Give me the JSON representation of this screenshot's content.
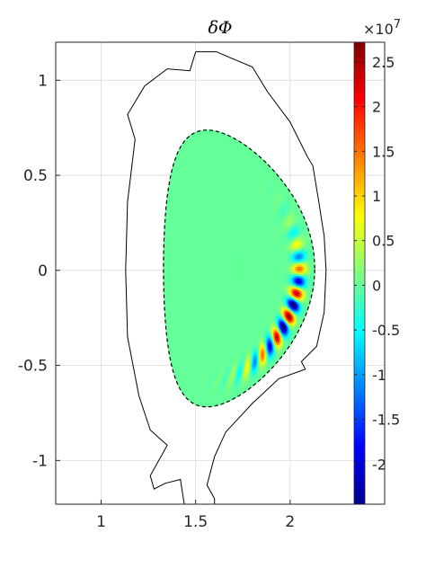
{
  "chart_data": {
    "type": "heatmap",
    "title": "δΦ",
    "xlabel": "",
    "ylabel": "",
    "xlim": [
      0.76,
      2.5
    ],
    "ylim": [
      -1.23,
      1.2
    ],
    "x_ticks": [
      1,
      1.5,
      2
    ],
    "x_tick_labels": [
      "1",
      "1.5",
      "2"
    ],
    "y_ticks": [
      1,
      0.5,
      0,
      -0.5,
      -1
    ],
    "y_tick_labels": [
      "1",
      "0.5",
      "0",
      "-0.5",
      "-1"
    ],
    "grid": true,
    "colormap": "jet",
    "colorbar": {
      "location": "right",
      "exponent_label": "×10",
      "exponent_power": "7",
      "range": [
        -2.45,
        2.72
      ],
      "ticks": [
        2.5,
        2,
        1.5,
        1,
        0.5,
        0,
        -0.5,
        -1,
        -1.5,
        -2
      ],
      "tick_labels": [
        "2.5",
        "2",
        "1.5",
        "1",
        "0.5",
        "0",
        "-0.5",
        "-1",
        "-1.5",
        "-2"
      ]
    },
    "wall_outline": [
      [
        1.5,
        1.15
      ],
      [
        1.61,
        1.15
      ],
      [
        1.68,
        1.12
      ],
      [
        1.8,
        1.07
      ],
      [
        1.88,
        0.94
      ],
      [
        2.0,
        0.78
      ],
      [
        2.09,
        0.6
      ],
      [
        2.12,
        0.55
      ],
      [
        2.15,
        0.37
      ],
      [
        2.18,
        0.18
      ],
      [
        2.19,
        0.0
      ],
      [
        2.18,
        -0.22
      ],
      [
        2.14,
        -0.4
      ],
      [
        2.06,
        -0.48
      ],
      [
        2.08,
        -0.52
      ],
      [
        1.94,
        -0.57
      ],
      [
        1.8,
        -0.7
      ],
      [
        1.66,
        -0.85
      ],
      [
        1.6,
        -0.98
      ],
      [
        1.56,
        -1.13
      ],
      [
        1.6,
        -1.2
      ],
      [
        1.6,
        -1.23
      ]
    ],
    "wall_outline_2": [
      [
        1.44,
        -1.23
      ],
      [
        1.42,
        -1.1
      ],
      [
        1.34,
        -1.12
      ],
      [
        1.28,
        -1.15
      ],
      [
        1.26,
        -1.08
      ],
      [
        1.35,
        -0.92
      ],
      [
        1.26,
        -0.84
      ],
      [
        1.2,
        -0.66
      ],
      [
        1.14,
        -0.35
      ],
      [
        1.13,
        0.0
      ],
      [
        1.14,
        0.36
      ],
      [
        1.18,
        0.69
      ],
      [
        1.14,
        0.82
      ],
      [
        1.23,
        0.97
      ],
      [
        1.35,
        1.06
      ],
      [
        1.47,
        1.05
      ],
      [
        1.5,
        1.15
      ]
    ],
    "lcfs": {
      "center": [
        1.73,
        -0.03
      ],
      "minor_radius": 0.4,
      "elongation": 1.82,
      "triangularity": 0.44,
      "z_offset": 0.04,
      "x_point": [
        1.48,
        -0.9
      ]
    },
    "mode": {
      "poloidal_mode_number": 28,
      "radial_peak": 0.8,
      "radial_width": 0.09,
      "ballooning_peak_angle": -0.45,
      "ballooning_width": 0.6,
      "peak_amplitude": 2.72
    }
  }
}
